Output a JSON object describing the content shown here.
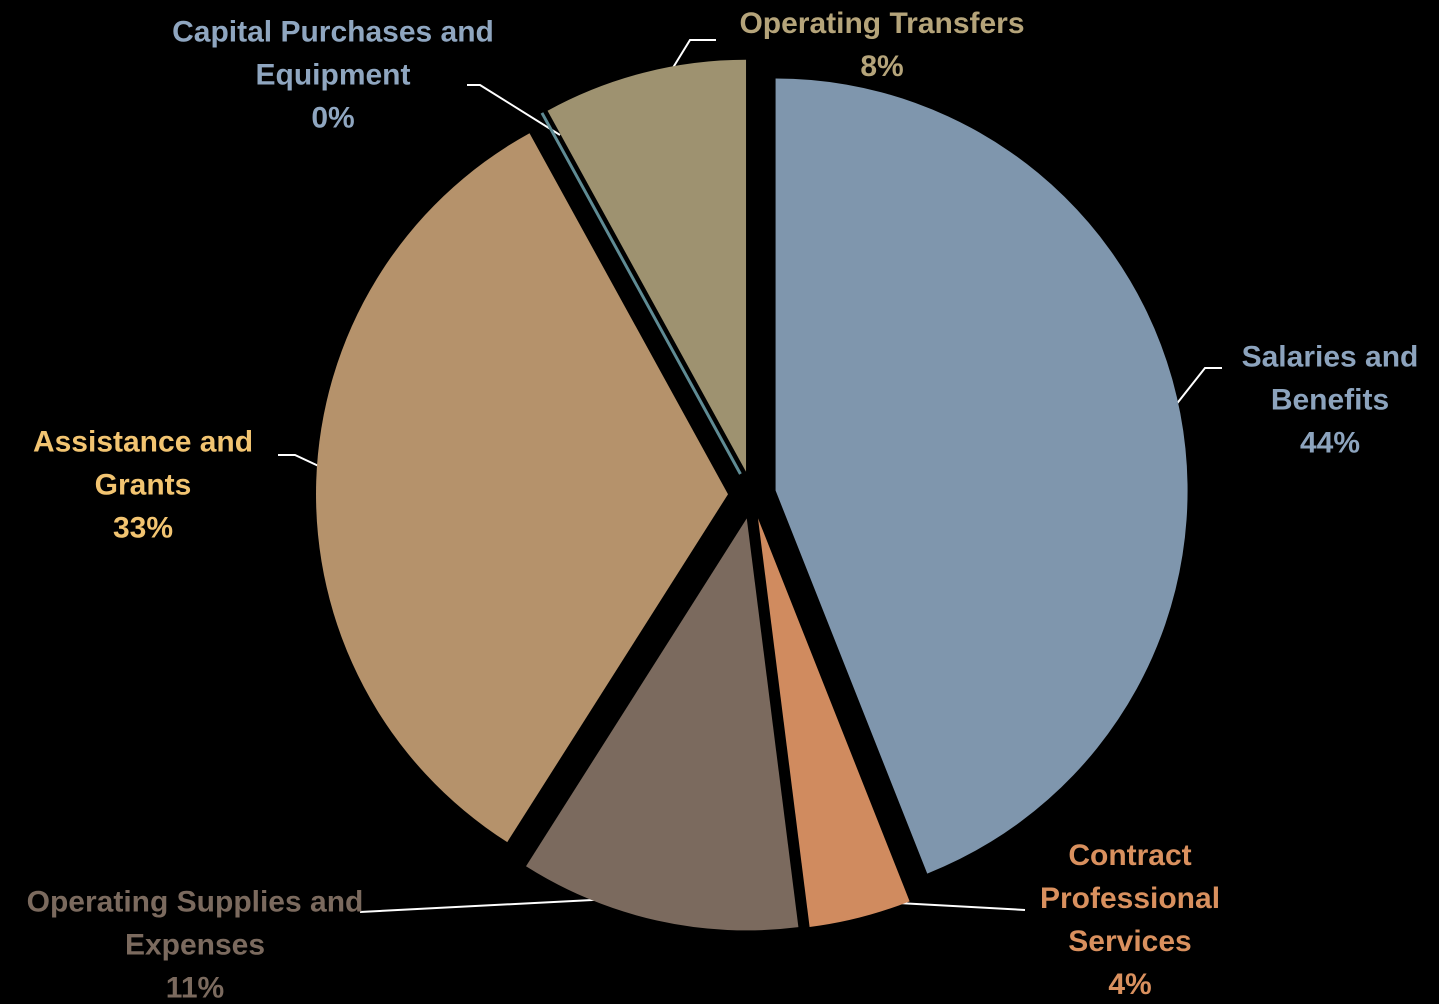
{
  "chart_data": {
    "type": "pie",
    "categories": [
      "Salaries and Benefits",
      "Contract Professional Services",
      "Operating Supplies and Expenses",
      "Assistance and Grants",
      "Capital Purchases and Equipment",
      "Operating Transfers"
    ],
    "values": [
      44,
      4,
      11,
      33,
      0,
      8
    ],
    "value_labels": [
      "44%",
      "4%",
      "11%",
      "33%",
      "0%",
      "8%"
    ],
    "colors": [
      "#7f96ad",
      "#d08b5f",
      "#7b6a5e",
      "#b5926b",
      "#5f8b94",
      "#9e9270"
    ]
  }
}
